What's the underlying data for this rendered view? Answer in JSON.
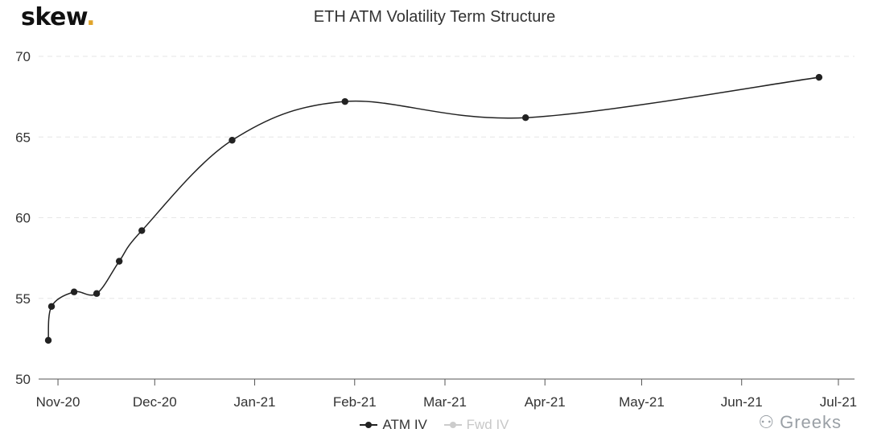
{
  "brand": {
    "name": "skew",
    "dot": "."
  },
  "watermark": {
    "icon": "wechat-icon",
    "text": "Greeks"
  },
  "chart_data": {
    "type": "line",
    "title": "ETH ATM Volatility Term Structure",
    "xlabel": "",
    "ylabel": "",
    "x_ticks": [
      "Nov-20",
      "Dec-20",
      "Jan-21",
      "Feb-21",
      "Mar-21",
      "Apr-21",
      "May-21",
      "Jun-21",
      "Jul-21"
    ],
    "x_tick_dates": [
      "2020-11-01",
      "2020-12-01",
      "2021-01-01",
      "2021-02-01",
      "2021-03-01",
      "2021-04-01",
      "2021-05-01",
      "2021-06-01",
      "2021-07-01"
    ],
    "y_ticks": [
      50,
      55,
      60,
      65,
      70
    ],
    "ylim": [
      50,
      70
    ],
    "xlim": [
      "2020-10-26",
      "2021-07-06"
    ],
    "grid": true,
    "legend_position": "bottom",
    "series": [
      {
        "name": "ATM IV",
        "color": "#222222",
        "visible": true,
        "points": [
          {
            "x": "2020-10-29",
            "y": 52.4
          },
          {
            "x": "2020-10-30",
            "y": 54.5
          },
          {
            "x": "2020-11-06",
            "y": 55.4
          },
          {
            "x": "2020-11-13",
            "y": 55.3
          },
          {
            "x": "2020-11-20",
            "y": 57.3
          },
          {
            "x": "2020-11-27",
            "y": 59.2
          },
          {
            "x": "2020-12-25",
            "y": 64.8
          },
          {
            "x": "2021-01-29",
            "y": 67.2
          },
          {
            "x": "2021-03-26",
            "y": 66.2
          },
          {
            "x": "2021-06-25",
            "y": 68.7
          }
        ]
      },
      {
        "name": "Fwd IV",
        "color": "#cccccc",
        "visible": false,
        "points": []
      }
    ]
  }
}
